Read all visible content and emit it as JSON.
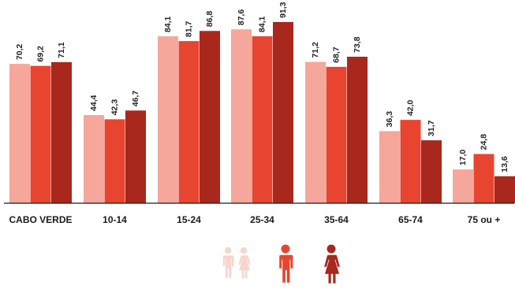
{
  "chart_data": {
    "type": "bar",
    "title": "",
    "xlabel": "",
    "ylabel": "",
    "ylim": [
      0,
      100
    ],
    "grid": false,
    "legend": "bottom-center",
    "categories": [
      "CABO VERDE",
      "10-14",
      "15-24",
      "25-34",
      "35-64",
      "65-74",
      "75 ou +"
    ],
    "series": [
      {
        "icon": "male-female-icon",
        "color": "#f5a79b",
        "values": [
          70.2,
          44.4,
          84.1,
          87.6,
          71.2,
          36.3,
          17.0
        ],
        "labels": [
          "70,2",
          "44,4",
          "84,1",
          "87,6",
          "71,2",
          "36,3",
          "17,0"
        ]
      },
      {
        "icon": "male-icon",
        "color": "#e84530",
        "values": [
          69.2,
          42.3,
          81.7,
          84.1,
          68.7,
          42.0,
          24.8
        ],
        "labels": [
          "69,2",
          "42,3",
          "81,7",
          "84,1",
          "68,7",
          "42,0",
          "24,8"
        ]
      },
      {
        "icon": "female-icon",
        "color": "#a8281d",
        "values": [
          71.1,
          46.7,
          86.8,
          91.3,
          73.8,
          31.7,
          13.6
        ],
        "labels": [
          "71,1",
          "46,7",
          "86,8",
          "91,3",
          "73,8",
          "31,7",
          "13,6"
        ]
      }
    ]
  }
}
